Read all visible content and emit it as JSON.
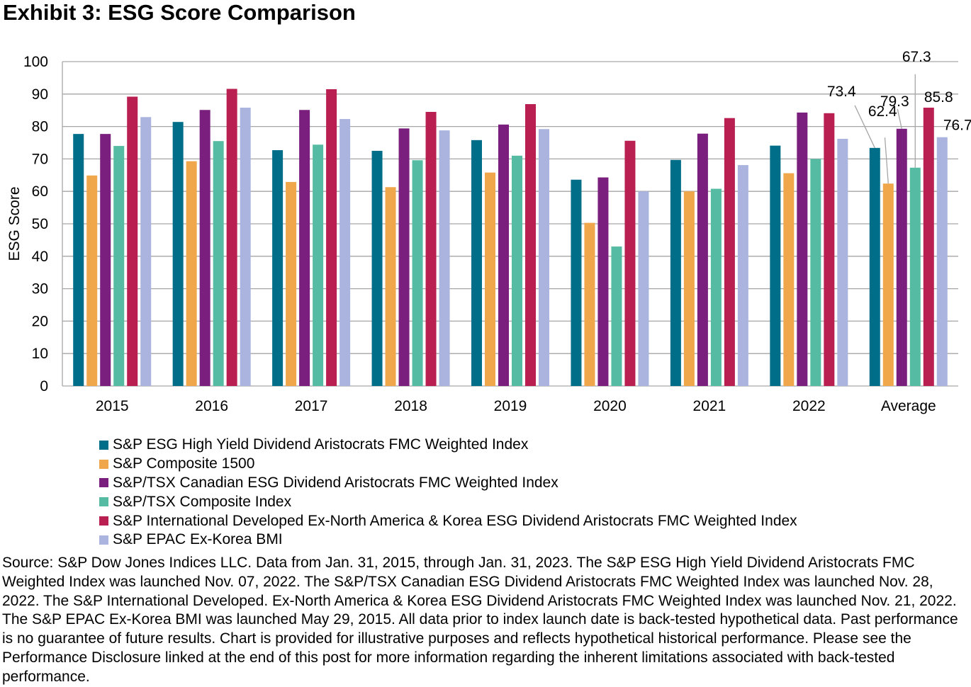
{
  "title": "Exhibit 3: ESG Score Comparison",
  "colors": {
    "S&P ESG High Yield Dividend Aristocrats FMC Weighted Index": "#006E88",
    "S&P Composite 1500": "#F0A64B",
    "S&P/TSX Canadian ESG Dividend Aristocrats FMC Weighted Index": "#7A1F7E",
    "S&P/TSX Composite Index": "#55BBA2",
    "S&P International Developed Ex-North America & Korea ESG Dividend Aristocrats FMC Weighted Index": "#B91F50",
    "S&P EPAC Ex-Korea BMI": "#AAB4DE"
  },
  "chart_data": {
    "type": "bar",
    "title": "Exhibit 3: ESG Score Comparison",
    "xlabel": "",
    "ylabel": "ESG Score",
    "ylim": [
      0,
      100
    ],
    "yticks": [
      0,
      10,
      20,
      30,
      40,
      50,
      60,
      70,
      80,
      90,
      100
    ],
    "grid": true,
    "legend_position": "bottom",
    "categories": [
      "2015",
      "2016",
      "2017",
      "2018",
      "2019",
      "2020",
      "2021",
      "2022",
      "Average"
    ],
    "series": [
      {
        "name": "S&P ESG High Yield Dividend Aristocrats FMC Weighted Index",
        "values": [
          77.7,
          81.4,
          72.7,
          72.5,
          75.8,
          63.6,
          69.7,
          74.1,
          73.4
        ]
      },
      {
        "name": "S&P Composite 1500",
        "values": [
          64.9,
          69.3,
          62.9,
          61.3,
          65.8,
          50.3,
          60.0,
          65.6,
          62.4
        ]
      },
      {
        "name": "S&P/TSX Canadian ESG Dividend Aristocrats FMC Weighted Index",
        "values": [
          77.7,
          85.1,
          85.1,
          79.4,
          80.6,
          64.3,
          77.8,
          84.3,
          79.3
        ]
      },
      {
        "name": "S&P/TSX Composite Index",
        "values": [
          74.0,
          75.5,
          74.4,
          69.6,
          71.0,
          43.0,
          60.8,
          70.0,
          67.3
        ]
      },
      {
        "name": "S&P International Developed Ex-North America & Korea ESG Dividend Aristocrats FMC Weighted Index",
        "values": [
          89.2,
          91.6,
          91.5,
          84.5,
          86.9,
          75.6,
          82.6,
          84.1,
          85.8
        ]
      },
      {
        "name": "S&P EPAC Ex-Korea BMI",
        "values": [
          82.9,
          85.8,
          82.3,
          78.8,
          79.2,
          60.0,
          68.1,
          76.2,
          76.7
        ]
      }
    ],
    "data_labels": [
      {
        "category": "Average",
        "series_index": 0,
        "text": "73.4"
      },
      {
        "category": "Average",
        "series_index": 1,
        "text": "62.4"
      },
      {
        "category": "Average",
        "series_index": 2,
        "text": "79.3"
      },
      {
        "category": "Average",
        "series_index": 3,
        "text": "67.3"
      },
      {
        "category": "Average",
        "series_index": 4,
        "text": "85.8"
      },
      {
        "category": "Average",
        "series_index": 5,
        "text": "76.7"
      }
    ]
  },
  "legend": [
    "S&P ESG High Yield Dividend Aristocrats FMC Weighted Index",
    "S&P Composite 1500",
    "S&P/TSX Canadian ESG Dividend Aristocrats FMC Weighted Index",
    "S&P/TSX Composite Index",
    "S&P International Developed Ex-North America & Korea ESG Dividend Aristocrats FMC Weighted Index",
    "S&P EPAC Ex-Korea BMI"
  ],
  "source": "Source: S&P Dow Jones Indices LLC. Data from Jan. 31, 2015, through Jan. 31, 2023. The S&P ESG High Yield Dividend Aristocrats FMC Weighted Index was launched Nov. 07, 2022. The S&P/TSX Canadian ESG Dividend Aristocrats FMC Weighted Index was launched Nov. 28, 2022. The S&P International Developed. Ex-North America & Korea ESG Dividend Aristocrats FMC Weighted Index was launched Nov. 21, 2022. The S&P EPAC Ex-Korea BMI was launched May 29, 2015. All data prior to index launch date is back-tested hypothetical data. Past performance is no guarantee of future results. Chart is provided for illustrative purposes and reflects hypothetical historical performance. Please see the Performance Disclosure linked at the end of this post for more information regarding the inherent limitations associated with back-tested performance."
}
